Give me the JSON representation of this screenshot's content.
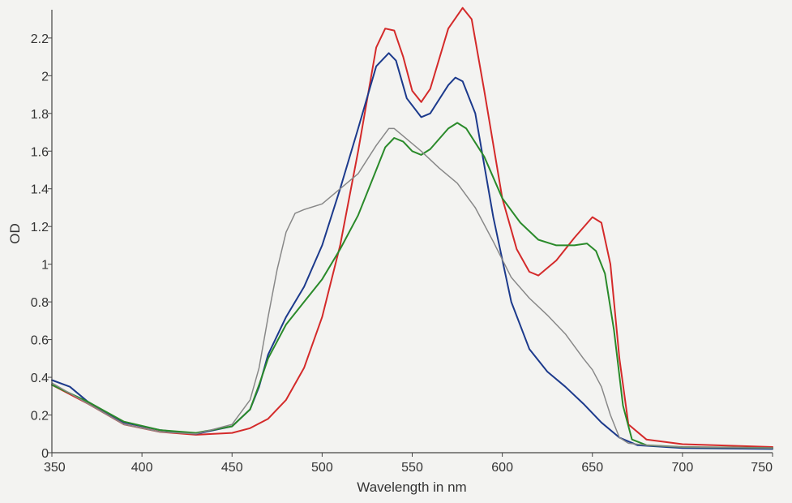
{
  "chart_data": {
    "type": "line",
    "title": "",
    "xlabel": "Wavelength in nm",
    "ylabel": "OD",
    "xlim": [
      350,
      750
    ],
    "ylim": [
      0,
      2.35
    ],
    "x_ticks": [
      350,
      400,
      450,
      500,
      550,
      600,
      650,
      700,
      750
    ],
    "y_ticks": [
      0,
      0.2,
      0.4,
      0.6,
      0.8,
      1,
      1.2,
      1.4,
      1.6,
      1.8,
      2,
      2.2
    ],
    "x_tick_labels": [
      "350",
      "400",
      "450",
      "500",
      "550",
      "600",
      "650",
      "700",
      "750"
    ],
    "y_tick_labels": [
      "0",
      "0.2",
      "0.4",
      "0.6",
      "0.8",
      "1",
      "1.2",
      "1.4",
      "1.6",
      "1.8",
      "2",
      "2.2"
    ],
    "grid": false,
    "legend": "none",
    "series": [
      {
        "color": "#d42a2a",
        "points": [
          [
            350,
            0.36
          ],
          [
            370,
            0.26
          ],
          [
            390,
            0.15
          ],
          [
            410,
            0.11
          ],
          [
            430,
            0.095
          ],
          [
            450,
            0.105
          ],
          [
            460,
            0.13
          ],
          [
            470,
            0.18
          ],
          [
            480,
            0.28
          ],
          [
            490,
            0.45
          ],
          [
            500,
            0.72
          ],
          [
            510,
            1.1
          ],
          [
            520,
            1.6
          ],
          [
            530,
            2.15
          ],
          [
            535,
            2.25
          ],
          [
            540,
            2.24
          ],
          [
            545,
            2.1
          ],
          [
            550,
            1.92
          ],
          [
            555,
            1.86
          ],
          [
            560,
            1.93
          ],
          [
            570,
            2.25
          ],
          [
            578,
            2.36
          ],
          [
            583,
            2.3
          ],
          [
            590,
            1.92
          ],
          [
            600,
            1.35
          ],
          [
            608,
            1.08
          ],
          [
            615,
            0.96
          ],
          [
            620,
            0.94
          ],
          [
            630,
            1.02
          ],
          [
            640,
            1.14
          ],
          [
            650,
            1.25
          ],
          [
            655,
            1.22
          ],
          [
            660,
            1.0
          ],
          [
            665,
            0.5
          ],
          [
            670,
            0.15
          ],
          [
            680,
            0.07
          ],
          [
            700,
            0.045
          ],
          [
            750,
            0.03
          ]
        ]
      },
      {
        "color": "#1c3a8c",
        "points": [
          [
            350,
            0.385
          ],
          [
            360,
            0.35
          ],
          [
            370,
            0.27
          ],
          [
            390,
            0.16
          ],
          [
            410,
            0.12
          ],
          [
            430,
            0.1
          ],
          [
            450,
            0.14
          ],
          [
            460,
            0.23
          ],
          [
            465,
            0.35
          ],
          [
            470,
            0.52
          ],
          [
            480,
            0.72
          ],
          [
            490,
            0.88
          ],
          [
            500,
            1.1
          ],
          [
            510,
            1.4
          ],
          [
            520,
            1.72
          ],
          [
            530,
            2.05
          ],
          [
            537,
            2.12
          ],
          [
            541,
            2.08
          ],
          [
            547,
            1.88
          ],
          [
            555,
            1.78
          ],
          [
            560,
            1.8
          ],
          [
            570,
            1.95
          ],
          [
            574,
            1.99
          ],
          [
            578,
            1.97
          ],
          [
            585,
            1.8
          ],
          [
            595,
            1.25
          ],
          [
            605,
            0.8
          ],
          [
            615,
            0.55
          ],
          [
            625,
            0.43
          ],
          [
            635,
            0.35
          ],
          [
            645,
            0.26
          ],
          [
            655,
            0.16
          ],
          [
            665,
            0.08
          ],
          [
            675,
            0.04
          ],
          [
            700,
            0.025
          ],
          [
            750,
            0.02
          ]
        ]
      },
      {
        "color": "#2a8a2a",
        "points": [
          [
            350,
            0.36
          ],
          [
            370,
            0.27
          ],
          [
            390,
            0.165
          ],
          [
            410,
            0.12
          ],
          [
            430,
            0.105
          ],
          [
            450,
            0.14
          ],
          [
            460,
            0.23
          ],
          [
            465,
            0.36
          ],
          [
            470,
            0.5
          ],
          [
            480,
            0.68
          ],
          [
            490,
            0.8
          ],
          [
            500,
            0.92
          ],
          [
            510,
            1.08
          ],
          [
            520,
            1.26
          ],
          [
            530,
            1.5
          ],
          [
            535,
            1.62
          ],
          [
            540,
            1.67
          ],
          [
            545,
            1.65
          ],
          [
            550,
            1.6
          ],
          [
            555,
            1.58
          ],
          [
            560,
            1.61
          ],
          [
            570,
            1.72
          ],
          [
            575,
            1.75
          ],
          [
            580,
            1.72
          ],
          [
            590,
            1.57
          ],
          [
            600,
            1.35
          ],
          [
            610,
            1.22
          ],
          [
            620,
            1.13
          ],
          [
            630,
            1.1
          ],
          [
            640,
            1.1
          ],
          [
            647,
            1.11
          ],
          [
            652,
            1.07
          ],
          [
            657,
            0.95
          ],
          [
            662,
            0.65
          ],
          [
            667,
            0.25
          ],
          [
            672,
            0.07
          ],
          [
            680,
            0.04
          ],
          [
            700,
            0.03
          ],
          [
            750,
            0.025
          ]
        ]
      },
      {
        "color": "#888888",
        "points": [
          [
            350,
            0.37
          ],
          [
            370,
            0.26
          ],
          [
            390,
            0.15
          ],
          [
            410,
            0.11
          ],
          [
            430,
            0.1
          ],
          [
            450,
            0.15
          ],
          [
            460,
            0.28
          ],
          [
            465,
            0.45
          ],
          [
            470,
            0.72
          ],
          [
            475,
            0.97
          ],
          [
            480,
            1.17
          ],
          [
            485,
            1.27
          ],
          [
            490,
            1.29
          ],
          [
            500,
            1.32
          ],
          [
            510,
            1.4
          ],
          [
            520,
            1.48
          ],
          [
            530,
            1.63
          ],
          [
            537,
            1.72
          ],
          [
            540,
            1.72
          ],
          [
            545,
            1.68
          ],
          [
            555,
            1.6
          ],
          [
            565,
            1.51
          ],
          [
            575,
            1.43
          ],
          [
            585,
            1.3
          ],
          [
            595,
            1.12
          ],
          [
            605,
            0.93
          ],
          [
            615,
            0.82
          ],
          [
            625,
            0.73
          ],
          [
            635,
            0.63
          ],
          [
            645,
            0.5
          ],
          [
            650,
            0.44
          ],
          [
            655,
            0.35
          ],
          [
            660,
            0.2
          ],
          [
            665,
            0.08
          ],
          [
            670,
            0.05
          ],
          [
            680,
            0.04
          ],
          [
            700,
            0.03
          ],
          [
            750,
            0.025
          ]
        ]
      }
    ]
  }
}
